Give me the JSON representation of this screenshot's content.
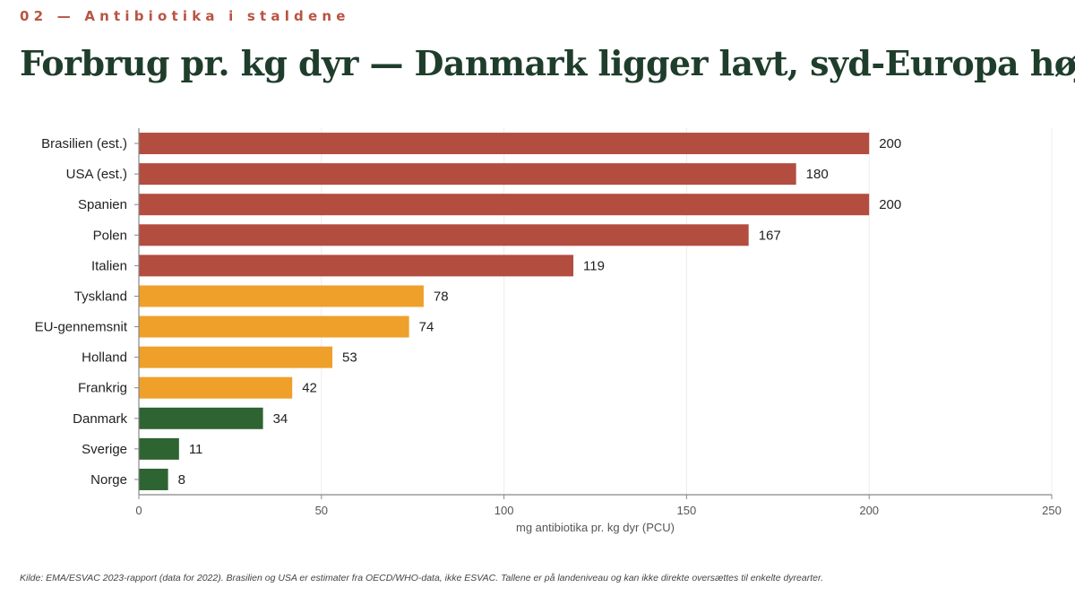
{
  "header": {
    "kicker": "02 — Antibiotika i staldene",
    "title": "Forbrug pr. kg dyr — Danmark ligger lavt, syd-Europa højt"
  },
  "footnote": "Kilde: EMA/ESVAC 2023-rapport (data for 2022). Brasilien og USA er estimater fra OECD/WHO-data, ikke ESVAC. Tallene er på landeniveau og kan ikke direkte oversættes til enkelte dyrearter.",
  "colors": {
    "high": "#b34d3f",
    "mid": "#eea02b",
    "low": "#2e6332",
    "kicker": "#b85443",
    "title": "#1f3d2b"
  },
  "chart_data": {
    "type": "bar",
    "orientation": "horizontal",
    "title": "",
    "xlabel": "mg antibiotika pr. kg dyr (PCU)",
    "ylabel": "",
    "xlim": [
      0,
      250
    ],
    "xticks": [
      0,
      50,
      100,
      150,
      200,
      250
    ],
    "grid": true,
    "categories": [
      "Brasilien (est.)",
      "USA (est.)",
      "Spanien",
      "Polen",
      "Italien",
      "Tyskland",
      "EU-gennemsnit",
      "Holland",
      "Frankrig",
      "Danmark",
      "Sverige",
      "Norge"
    ],
    "values": [
      200,
      180,
      200,
      167,
      119,
      78,
      74,
      53,
      42,
      34,
      11,
      8
    ],
    "color_groups": [
      "high",
      "high",
      "high",
      "high",
      "high",
      "mid",
      "mid",
      "mid",
      "mid",
      "low",
      "low",
      "low"
    ]
  }
}
